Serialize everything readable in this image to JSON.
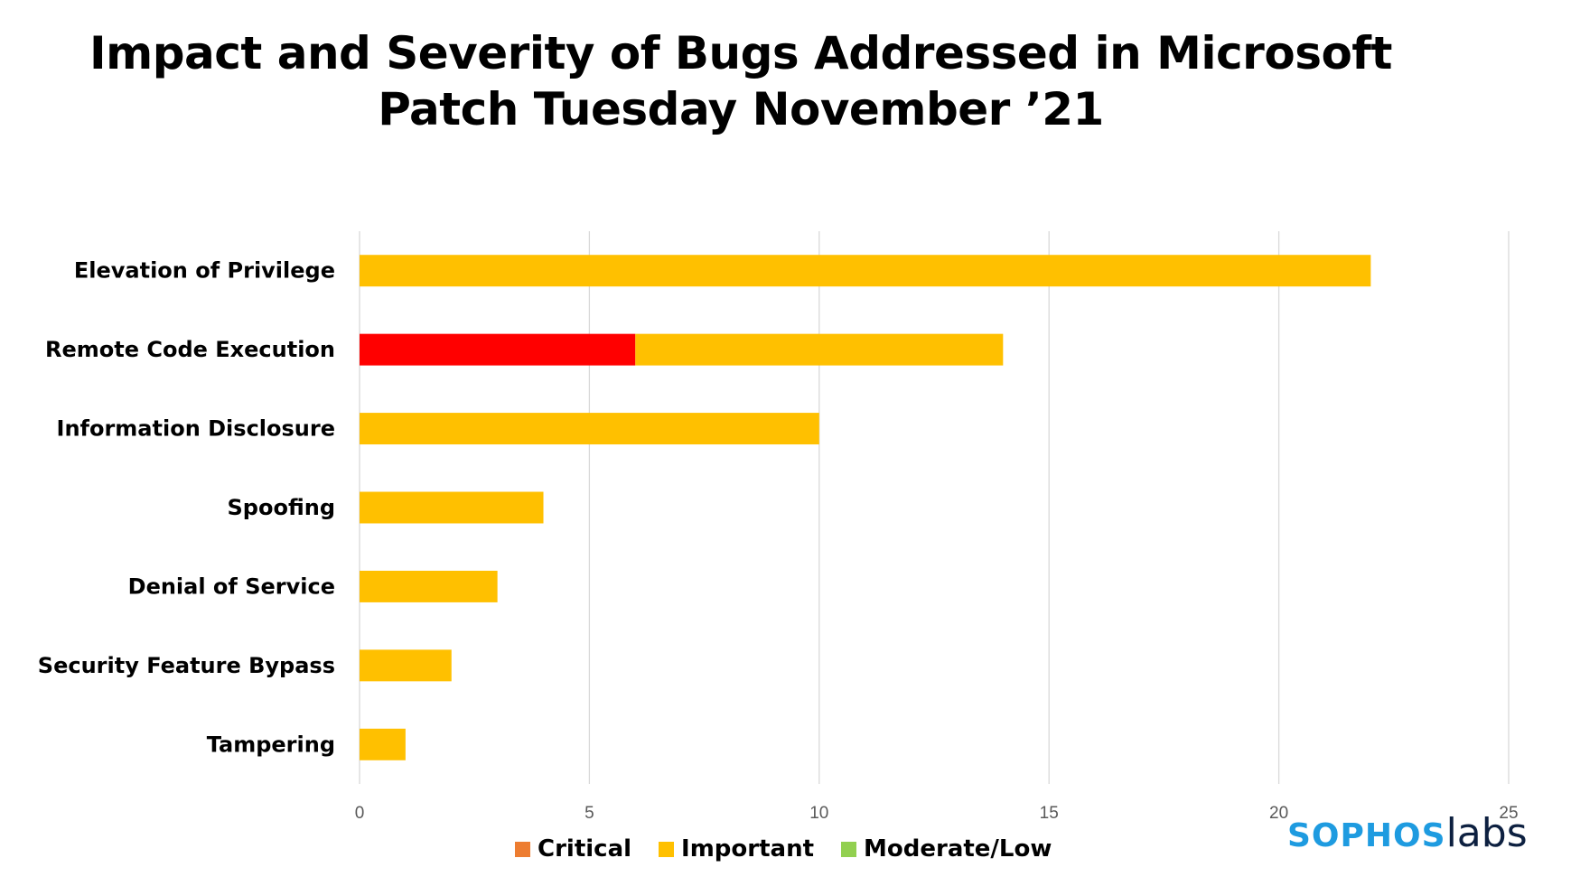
{
  "title_line1": "Impact and Severity of Bugs Addressed in Microsoft",
  "title_line2": "Patch Tuesday November ’21",
  "chart_data": {
    "type": "bar",
    "orientation": "horizontal",
    "stacked": true,
    "categories": [
      "Elevation of Privilege",
      "Remote Code Execution",
      "Information Disclosure",
      "Spoofing",
      "Denial of Service",
      "Security Feature Bypass",
      "Tampering"
    ],
    "series": [
      {
        "name": "Critical",
        "color": "#ff0000",
        "values": [
          0,
          6,
          0,
          0,
          0,
          0,
          0
        ]
      },
      {
        "name": "Important",
        "color": "#ffc000",
        "values": [
          22,
          8,
          10,
          4,
          3,
          2,
          1
        ]
      },
      {
        "name": "Moderate/Low",
        "color": "#92d050",
        "values": [
          0,
          0,
          0,
          0,
          0,
          0,
          0
        ]
      }
    ],
    "xlim": [
      0,
      25
    ],
    "xticks": [
      "0",
      "5",
      "10",
      "15",
      "20",
      "25"
    ],
    "grid": "vertical",
    "legend_position": "bottom"
  },
  "legend": [
    {
      "label": "Critical",
      "color": "#ed7d31"
    },
    {
      "label": "Important",
      "color": "#ffc000"
    },
    {
      "label": "Moderate/Low",
      "color": "#92d050"
    }
  ],
  "logo": {
    "part1": "SOPHOS",
    "part2": "labs"
  }
}
